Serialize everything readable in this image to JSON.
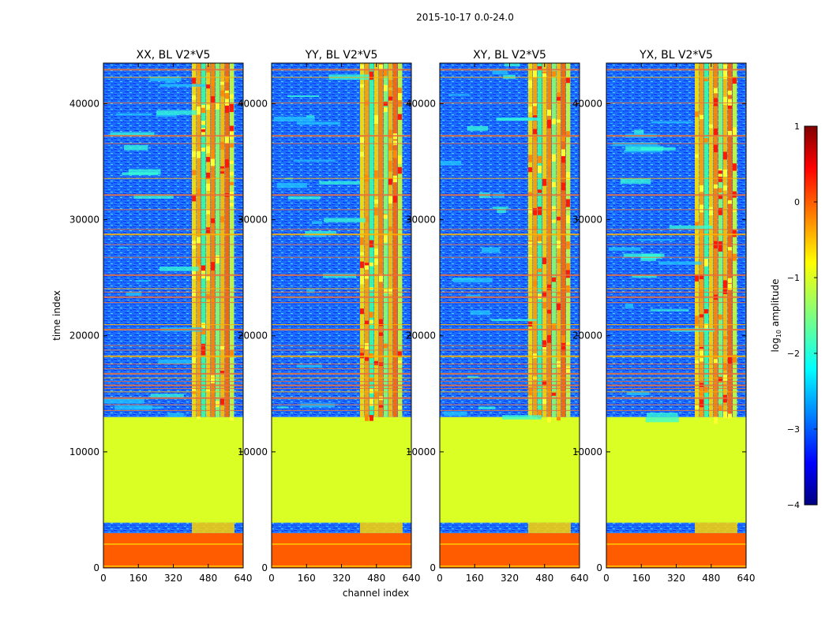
{
  "chart_data": {
    "type": "heatmap",
    "suptitle": "2015-10-17 0.0-24.0",
    "xlabel": "channel index",
    "ylabel": "time index",
    "xlim": [
      0,
      640
    ],
    "ylim": [
      0,
      43500
    ],
    "xticks": [
      0,
      160,
      320,
      480,
      640
    ],
    "yticks": [
      0,
      10000,
      20000,
      30000,
      40000
    ],
    "panels": [
      {
        "title": "XX, BL V2*V5",
        "bright_channels": [
          405,
          600
        ]
      },
      {
        "title": "YY, BL V2*V5",
        "bright_channels": [
          405,
          600
        ]
      },
      {
        "title": "XY, BL V2*V5",
        "bright_channels": [
          405,
          600
        ]
      },
      {
        "title": "YX, BL V2*V5",
        "bright_channels": [
          405,
          600
        ]
      }
    ],
    "blocks": [
      {
        "label": "orange flagged block",
        "t_start": 0,
        "t_end": 3000,
        "log10_value": 0
      },
      {
        "label": "noisy band",
        "t_start": 3000,
        "t_end": 3900,
        "log10_value": -2.5
      },
      {
        "label": "green flagged block",
        "t_start": 3900,
        "t_end": 13000,
        "log10_value": -1
      },
      {
        "label": "observed data",
        "t_start": 13000,
        "t_end": 43500,
        "log10_value": -2.5
      }
    ],
    "colorbar": {
      "label": "log₁₀ amplitude",
      "label_base": "log",
      "label_sub": "10",
      "label_rest": " amplitude",
      "range": [
        -4,
        1
      ],
      "ticks": [
        "1",
        "0",
        "−1",
        "−2",
        "−3",
        "−4"
      ],
      "tick_values": [
        1,
        0,
        -1,
        -2,
        -3,
        -4
      ],
      "colormap": "jet"
    }
  }
}
